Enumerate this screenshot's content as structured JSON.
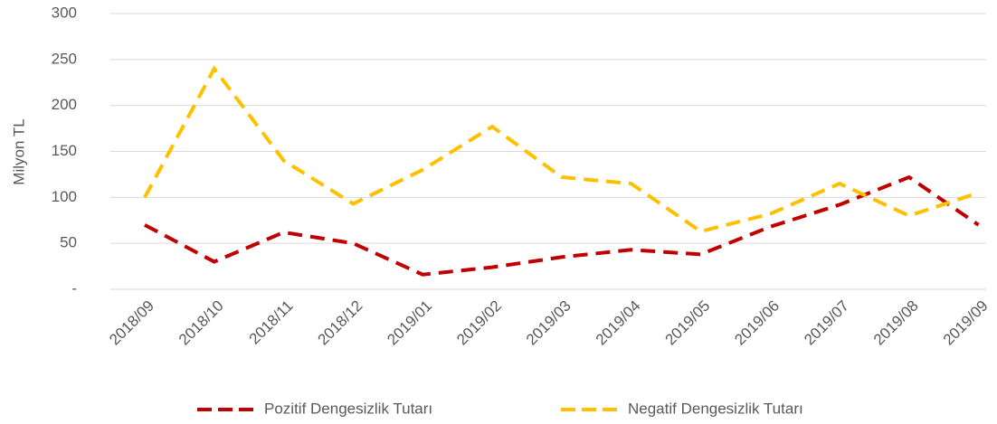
{
  "chart_data": {
    "type": "line",
    "ylabel": "Milyon TL",
    "categories": [
      "2018/09",
      "2018/10",
      "2018/11",
      "2018/12",
      "2019/01",
      "2019/02",
      "2019/03",
      "2019/04",
      "2019/05",
      "2019/06",
      "2019/07",
      "2019/08",
      "2019/09"
    ],
    "series": [
      {
        "name": "Pozitif Dengesizlik Tutarı",
        "color": "#c00000",
        "values": [
          70,
          30,
          62,
          50,
          16,
          24,
          35,
          43,
          38,
          68,
          92,
          122,
          70
        ]
      },
      {
        "name": "Negatif Dengesizlik Tutarı",
        "color": "#ffc000",
        "values": [
          100,
          240,
          140,
          93,
          130,
          177,
          122,
          115,
          63,
          82,
          115,
          80,
          105
        ]
      }
    ],
    "ylim": [
      0,
      300
    ],
    "yticks": [
      {
        "value": 0,
        "label": "-"
      },
      50,
      100,
      150,
      200,
      250,
      300
    ],
    "grid": true,
    "legend": "bottom"
  }
}
